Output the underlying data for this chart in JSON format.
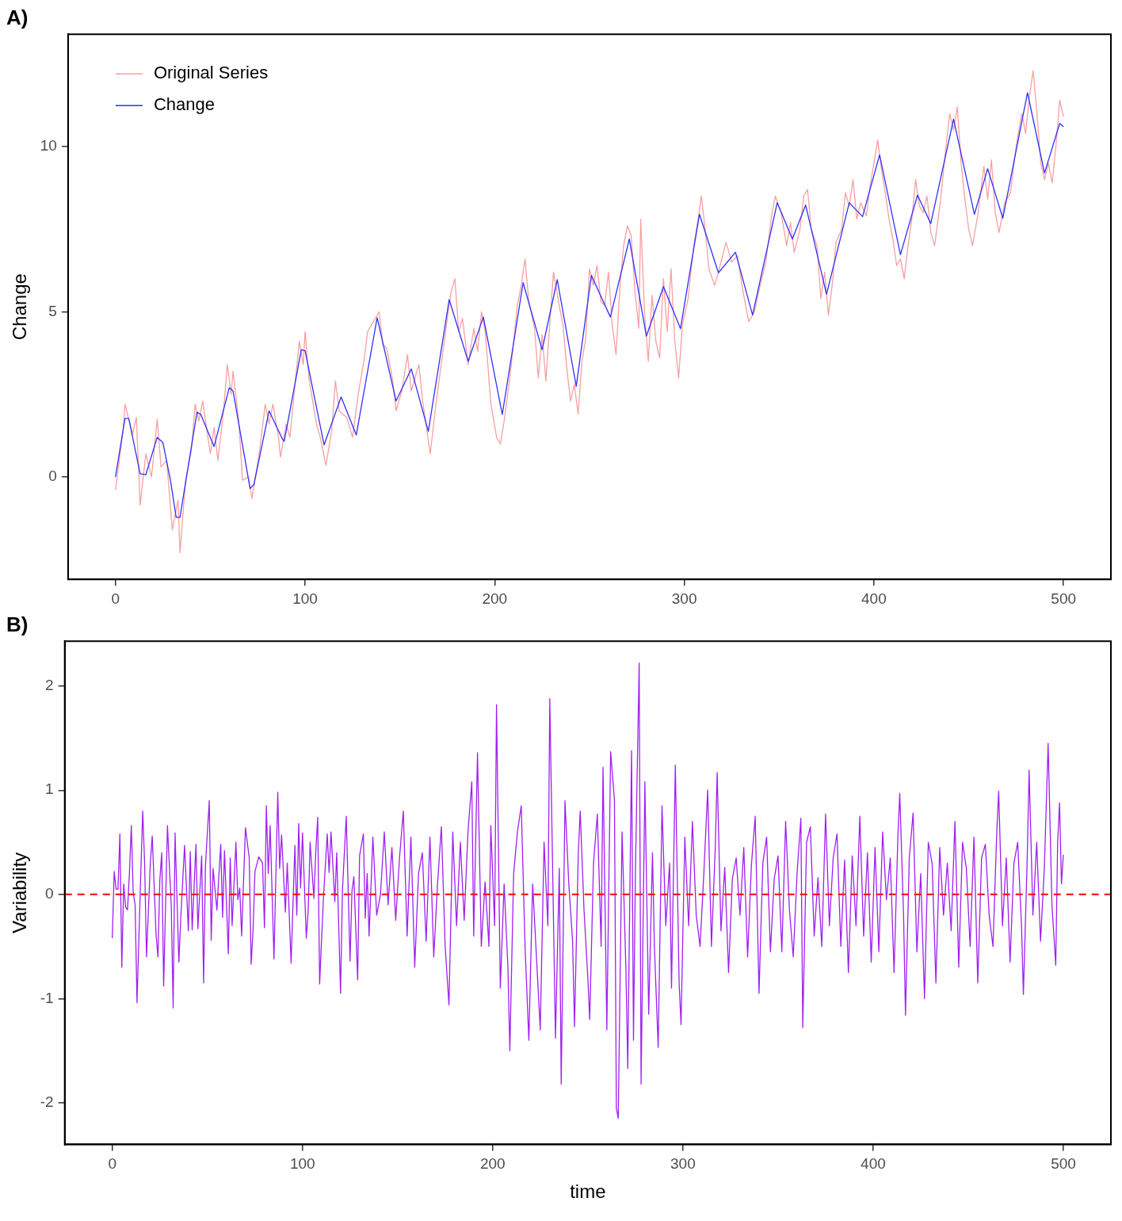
{
  "chart_data": [
    {
      "type": "line",
      "title": "A)",
      "ylabel": "Change",
      "xlim": [
        -25,
        525
      ],
      "xticks": [
        0,
        100,
        200,
        300,
        400,
        500
      ],
      "ylim": [
        -3.1,
        13.4
      ],
      "yticks": [
        0,
        5,
        10
      ],
      "grid": false,
      "legend": "top left",
      "marker": "none",
      "line_style": "solid",
      "series": [
        {
          "name": "Original Series",
          "color": "#f8a0a0",
          "x": [
            0,
            4,
            5,
            9,
            11,
            13,
            16,
            19,
            22,
            24,
            27,
            30,
            33,
            34,
            37,
            40,
            42,
            44,
            46,
            50,
            52,
            54,
            57,
            59,
            61,
            62,
            65,
            67,
            70,
            72,
            76,
            79,
            81,
            83,
            86,
            87,
            90,
            92,
            95,
            97,
            99,
            100,
            102,
            106,
            108,
            111,
            114,
            116,
            118,
            122,
            125,
            128,
            131,
            133,
            136,
            139,
            141,
            143,
            146,
            148,
            151,
            154,
            156,
            160,
            162,
            166,
            169,
            172,
            175,
            177,
            179,
            181,
            183,
            186,
            189,
            191,
            193,
            195,
            198,
            201,
            203,
            205,
            208,
            212,
            214,
            216,
            218,
            221,
            223,
            225,
            227,
            229,
            231,
            234,
            236,
            238,
            240,
            242,
            244,
            246,
            248,
            250,
            252,
            254,
            256,
            258,
            260,
            262,
            264,
            266,
            268,
            270,
            272,
            274,
            276,
            277,
            279,
            281,
            283,
            285,
            287,
            289,
            291,
            293,
            295,
            297,
            299,
            302,
            305,
            307,
            309,
            311,
            313,
            316,
            318,
            322,
            325,
            328,
            331,
            334,
            337,
            340,
            343,
            346,
            348,
            351,
            354,
            356,
            358,
            361,
            363,
            365,
            367,
            370,
            372,
            374,
            376,
            378,
            380,
            383,
            385,
            387,
            389,
            391,
            393,
            396,
            398,
            400,
            402,
            404,
            406,
            408,
            410,
            412,
            414,
            416,
            418,
            420,
            422,
            424,
            426,
            428,
            430,
            432,
            435,
            438,
            440,
            442,
            444,
            446,
            448,
            450,
            452,
            455,
            458,
            460,
            462,
            464,
            466,
            469,
            472,
            475,
            478,
            480,
            482,
            484,
            486,
            488,
            490,
            492,
            494,
            496,
            498,
            500
          ],
          "values": [
            -0.4,
            1.4,
            2.2,
            1.3,
            1.8,
            -0.85,
            0.7,
            0.0,
            1.75,
            0.3,
            0.5,
            -1.6,
            -0.7,
            -2.3,
            -0.1,
            0.8,
            2.2,
            1.7,
            2.3,
            0.7,
            1.5,
            0.5,
            2.0,
            3.4,
            2.5,
            3.2,
            1.7,
            -0.1,
            0.0,
            -0.65,
            0.8,
            2.2,
            1.6,
            2.2,
            1.2,
            0.6,
            1.6,
            1.2,
            3.0,
            4.1,
            3.4,
            4.4,
            3.0,
            1.6,
            1.2,
            0.35,
            1.4,
            2.9,
            2.0,
            1.8,
            1.2,
            2.5,
            3.5,
            4.4,
            4.7,
            5.0,
            4.0,
            3.9,
            3.0,
            2.0,
            2.6,
            3.7,
            2.6,
            3.4,
            2.3,
            0.7,
            2.2,
            3.5,
            4.8,
            5.6,
            6.0,
            4.4,
            4.8,
            3.4,
            4.5,
            3.8,
            5.0,
            4.4,
            2.2,
            1.2,
            1.0,
            1.7,
            3.0,
            5.2,
            5.8,
            6.6,
            5.3,
            4.5,
            3.0,
            4.3,
            2.9,
            4.6,
            6.2,
            5.2,
            4.6,
            3.3,
            2.3,
            2.8,
            1.9,
            3.5,
            4.2,
            6.3,
            5.8,
            6.4,
            5.3,
            5.2,
            6.2,
            4.6,
            3.7,
            5.7,
            7.0,
            7.6,
            7.3,
            5.6,
            4.5,
            7.8,
            5.0,
            3.5,
            5.5,
            4.1,
            3.6,
            6.0,
            4.4,
            6.3,
            4.1,
            3.0,
            4.6,
            5.4,
            7.0,
            7.7,
            8.5,
            7.5,
            6.3,
            5.8,
            6.2,
            7.1,
            6.5,
            6.7,
            5.6,
            4.7,
            5.0,
            5.8,
            6.5,
            7.9,
            8.5,
            8.0,
            7.0,
            7.7,
            6.8,
            7.5,
            8.5,
            8.7,
            7.5,
            7.0,
            5.4,
            6.2,
            4.9,
            5.8,
            7.1,
            7.5,
            8.6,
            8.2,
            9.0,
            7.8,
            8.3,
            7.9,
            8.8,
            9.5,
            10.2,
            9.3,
            8.6,
            7.8,
            7.2,
            6.4,
            6.6,
            6.0,
            7.0,
            7.8,
            9.0,
            8.2,
            8.0,
            8.5,
            7.4,
            7.0,
            8.3,
            10.0,
            11.0,
            10.5,
            11.2,
            9.5,
            8.4,
            7.5,
            7.0,
            8.0,
            9.4,
            8.4,
            9.6,
            8.0,
            7.4,
            8.3,
            8.6,
            10.0,
            11.0,
            10.4,
            11.5,
            12.3,
            11.0,
            9.5,
            9.0,
            9.5,
            8.9,
            10.0,
            11.4,
            10.9
          ]
        },
        {
          "name": "Change",
          "color": "#3030ff",
          "x": [
            0,
            5,
            7,
            13,
            16,
            22,
            25,
            29,
            32,
            34,
            43,
            45,
            52,
            60,
            62,
            71,
            73,
            81,
            88,
            89,
            98,
            100,
            110,
            119,
            127,
            138,
            148,
            156,
            165,
            176,
            186,
            194,
            204,
            215,
            225,
            233,
            243,
            251,
            261,
            271,
            280,
            289,
            298,
            308,
            318,
            327,
            336,
            349,
            357,
            364,
            375,
            387,
            394,
            403,
            414,
            423,
            430,
            442,
            453,
            460,
            468,
            481,
            490,
            498,
            500
          ],
          "values": [
            0,
            1.77,
            1.77,
            0.1,
            0.07,
            1.2,
            1.04,
            -0.1,
            -1.22,
            -1.22,
            1.96,
            1.89,
            0.92,
            2.7,
            2.6,
            -0.35,
            -0.23,
            2.0,
            1.15,
            1.08,
            3.85,
            3.82,
            0.97,
            2.42,
            1.27,
            4.82,
            2.3,
            3.27,
            1.38,
            5.37,
            3.5,
            4.84,
            1.89,
            5.88,
            3.85,
            5.97,
            2.74,
            6.1,
            4.84,
            7.2,
            4.26,
            5.76,
            4.49,
            7.95,
            6.18,
            6.8,
            4.9,
            8.3,
            7.2,
            8.23,
            5.53,
            8.3,
            7.88,
            9.75,
            6.73,
            8.53,
            7.67,
            10.83,
            7.95,
            9.33,
            7.83,
            11.63,
            9.2,
            10.7,
            10.6
          ]
        }
      ]
    },
    {
      "type": "line",
      "title": "B)",
      "xlabel": "time",
      "ylabel": "Variability",
      "xlim": [
        -25,
        525
      ],
      "xticks": [
        0,
        100,
        200,
        300,
        400,
        500
      ],
      "ylim": [
        -2.4,
        2.43
      ],
      "yticks": [
        -2,
        -1,
        0,
        1,
        2
      ],
      "grid": false,
      "marker": "none",
      "line_style": "solid",
      "ref_lines": [
        {
          "axis": "y",
          "value": 0,
          "color": "#ff0000",
          "line_style": "dashed"
        }
      ],
      "series": [
        {
          "color": "#a020f0",
          "x": [
            0,
            1,
            2,
            3,
            4,
            5,
            6,
            7,
            8,
            9,
            10,
            11,
            12,
            13,
            15,
            16,
            17,
            18,
            20,
            21,
            23,
            24,
            25,
            26,
            27,
            29,
            31,
            32,
            33,
            35,
            36,
            38,
            40,
            41,
            42,
            44,
            45,
            47,
            48,
            49,
            51,
            52,
            53,
            55,
            57,
            58,
            59,
            61,
            62,
            63,
            65,
            66,
            67,
            68,
            70,
            72,
            73,
            74,
            75,
            77,
            79,
            80,
            81,
            82,
            83,
            85,
            87,
            88,
            89,
            91,
            92,
            94,
            96,
            97,
            98,
            99,
            100,
            102,
            103,
            104,
            106,
            107,
            108,
            109,
            111,
            113,
            114,
            115,
            117,
            118,
            120,
            121,
            123,
            125,
            126,
            127,
            129,
            130,
            132,
            133,
            134,
            135,
            137,
            139,
            141,
            143,
            145,
            147,
            149,
            151,
            153,
            155,
            157,
            159,
            161,
            163,
            165,
            167,
            169,
            171,
            173,
            175,
            177,
            179,
            181,
            183,
            185,
            187,
            189,
            190,
            192,
            194,
            196,
            198,
            199,
            201,
            202,
            204,
            206,
            208,
            209,
            211,
            213,
            215,
            217,
            219,
            221,
            223,
            225,
            227,
            229,
            230,
            232,
            233,
            235,
            236,
            238,
            240,
            242,
            243,
            245,
            246,
            248,
            250,
            251,
            253,
            255,
            257,
            258,
            260,
            262,
            264,
            265,
            266,
            268,
            270,
            271,
            273,
            274,
            275,
            277,
            278,
            280,
            282,
            284,
            285,
            287,
            289,
            291,
            293,
            294,
            296,
            298,
            299,
            301,
            303,
            305,
            307,
            309,
            311,
            313,
            315,
            317,
            318,
            320,
            322,
            324,
            326,
            328,
            330,
            332,
            334,
            336,
            338,
            340,
            342,
            344,
            346,
            348,
            350,
            352,
            354,
            356,
            358,
            360,
            362,
            363,
            365,
            367,
            369,
            371,
            373,
            375,
            377,
            379,
            381,
            383,
            385,
            387,
            389,
            391,
            393,
            395,
            397,
            399,
            401,
            403,
            405,
            407,
            409,
            411,
            413,
            414,
            416,
            417,
            419,
            421,
            423,
            425,
            427,
            429,
            431,
            433,
            435,
            437,
            439,
            441,
            443,
            445,
            447,
            449,
            451,
            453,
            455,
            457,
            459,
            461,
            463,
            465,
            466,
            468,
            470,
            472,
            474,
            476,
            478,
            479,
            481,
            482,
            484,
            486,
            488,
            490,
            492,
            494,
            496,
            497,
            498,
            499,
            500
          ],
          "values": [
            -0.42,
            0.22,
            0.05,
            0.05,
            0.58,
            -0.7,
            0.1,
            -0.12,
            -0.15,
            0.2,
            0.66,
            0.02,
            -0.1,
            -1.04,
            0.21,
            0.8,
            0.3,
            -0.6,
            0.3,
            0.56,
            -0.38,
            -0.6,
            0.14,
            0.4,
            -0.88,
            0.66,
            -0.1,
            -1.09,
            0.59,
            -0.65,
            -0.23,
            0.47,
            -0.35,
            0.41,
            -0.34,
            0.48,
            -0.33,
            0.37,
            -0.85,
            0.29,
            0.9,
            -0.44,
            0.25,
            -0.15,
            0.48,
            -0.22,
            0.42,
            -0.57,
            0.35,
            -0.3,
            0.5,
            -0.05,
            0.06,
            -0.4,
            0.64,
            0.35,
            -0.67,
            -0.35,
            0.22,
            0.36,
            0.3,
            -0.32,
            0.85,
            0.2,
            0.66,
            -0.62,
            0.98,
            0.25,
            0.57,
            -0.17,
            0.3,
            -0.66,
            0.47,
            -0.2,
            0.68,
            0.06,
            0.59,
            -0.42,
            -0.15,
            0.5,
            -0.04,
            0.42,
            0.74,
            -0.86,
            -0.04,
            0.58,
            0.21,
            0.6,
            -0.07,
            0.4,
            -0.95,
            0.04,
            0.75,
            -0.64,
            0.03,
            0.17,
            -0.82,
            0.37,
            0.58,
            -0.23,
            0.2,
            -0.4,
            0.55,
            -0.2,
            0.0,
            0.6,
            -0.1,
            0.45,
            -0.25,
            0.35,
            0.8,
            -0.4,
            0.55,
            -0.7,
            0.2,
            0.4,
            -0.45,
            0.55,
            -0.6,
            0.1,
            0.65,
            -0.5,
            -1.06,
            0.6,
            -0.3,
            0.5,
            -0.25,
            0.6,
            1.08,
            -0.4,
            1.36,
            -0.5,
            0.12,
            -0.5,
            0.66,
            -0.3,
            1.82,
            -0.9,
            0.1,
            -0.7,
            -1.5,
            0.2,
            0.6,
            0.85,
            -0.5,
            -1.4,
            0.1,
            -0.6,
            -1.3,
            0.5,
            -0.3,
            1.88,
            -0.3,
            -1.38,
            0.25,
            -1.82,
            0.9,
            0.1,
            -0.45,
            -1.27,
            0.4,
            0.8,
            -0.15,
            -0.8,
            -1.2,
            0.3,
            0.77,
            -0.5,
            1.22,
            -1.3,
            1.37,
            0.9,
            -2.05,
            -2.15,
            0.6,
            -0.7,
            -1.67,
            1.38,
            -1.4,
            0.2,
            2.22,
            -1.82,
            1.08,
            -1.15,
            0.4,
            -0.5,
            -1.47,
            0.85,
            -0.3,
            0.3,
            -0.9,
            1.24,
            -0.85,
            -1.25,
            0.55,
            -0.3,
            0.7,
            -0.2,
            -0.5,
            0.2,
            1.0,
            -0.5,
            0.45,
            1.17,
            -0.35,
            0.26,
            -0.75,
            0.15,
            0.35,
            -0.2,
            0.45,
            -0.6,
            0.28,
            0.75,
            -0.95,
            0.3,
            0.55,
            -0.55,
            0.15,
            0.37,
            -0.55,
            0.7,
            -0.15,
            -0.6,
            0.2,
            0.73,
            -1.28,
            0.5,
            0.65,
            -0.4,
            0.16,
            -0.5,
            0.77,
            -0.3,
            0.35,
            0.58,
            -0.5,
            0.33,
            -0.75,
            0.37,
            -0.3,
            0.75,
            -0.4,
            0.4,
            -0.65,
            0.45,
            -0.55,
            0.6,
            -0.05,
            0.35,
            -0.75,
            0.55,
            0.97,
            -0.2,
            -1.16,
            0.35,
            0.78,
            -0.55,
            0.2,
            -1.0,
            0.5,
            0.3,
            -0.85,
            0.45,
            -0.2,
            0.3,
            -0.35,
            0.7,
            -0.7,
            0.5,
            0.25,
            -0.5,
            0.55,
            -0.85,
            0.35,
            0.48,
            -0.2,
            -0.5,
            0.6,
            0.99,
            -0.3,
            0.35,
            -0.65,
            0.3,
            0.5,
            -0.3,
            -0.96,
            0.35,
            1.19,
            -0.2,
            0.5,
            -0.45,
            0.25,
            1.45,
            -0.1,
            -0.68,
            0.5,
            0.88,
            0.1,
            0.38
          ]
        }
      ]
    }
  ]
}
